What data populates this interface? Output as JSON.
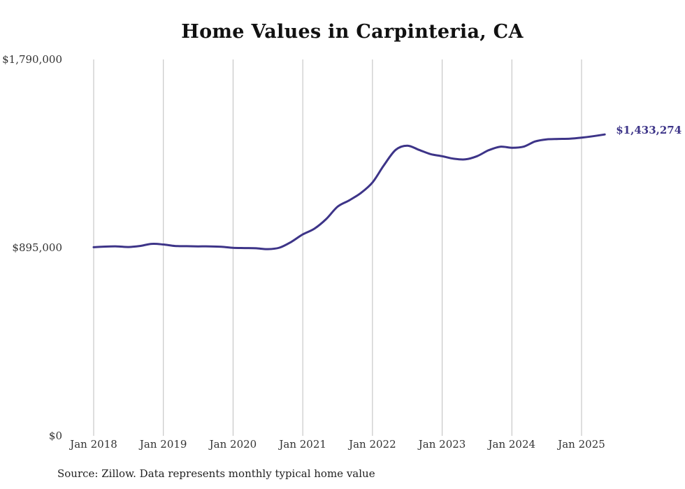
{
  "chart_data": {
    "type": "line",
    "title": "Home Values in Carpinteria, CA",
    "xlabel": "",
    "ylabel": "",
    "ylim": [
      0,
      1790000
    ],
    "y_ticks": [
      {
        "value": 0,
        "label": "$0"
      },
      {
        "value": 895000,
        "label": "$895,000"
      },
      {
        "value": 1790000,
        "label": "$1,790,000"
      }
    ],
    "x_ticks": [
      {
        "value": "2018-01",
        "label": "Jan 2018"
      },
      {
        "value": "2019-01",
        "label": "Jan 2019"
      },
      {
        "value": "2020-01",
        "label": "Jan 2020"
      },
      {
        "value": "2021-01",
        "label": "Jan 2021"
      },
      {
        "value": "2022-01",
        "label": "Jan 2022"
      },
      {
        "value": "2023-01",
        "label": "Jan 2023"
      },
      {
        "value": "2024-01",
        "label": "Jan 2024"
      },
      {
        "value": "2025-01",
        "label": "Jan 2025"
      }
    ],
    "grid": {
      "vertical": true,
      "horizontal": false
    },
    "line_color": "#3d3488",
    "end_label": "$1,433,274",
    "series": [
      {
        "x": [
          "2018-01",
          "2018-03",
          "2018-05",
          "2018-07",
          "2018-09",
          "2018-11",
          "2019-01",
          "2019-03",
          "2019-05",
          "2019-07",
          "2019-09",
          "2019-11",
          "2020-01",
          "2020-03",
          "2020-05",
          "2020-07",
          "2020-09",
          "2020-11",
          "2021-01",
          "2021-03",
          "2021-05",
          "2021-07",
          "2021-09",
          "2021-11",
          "2022-01",
          "2022-03",
          "2022-05",
          "2022-07",
          "2022-09",
          "2022-11",
          "2023-01",
          "2023-03",
          "2023-05",
          "2023-07",
          "2023-09",
          "2023-11",
          "2024-01",
          "2024-03",
          "2024-05",
          "2024-07",
          "2024-09",
          "2024-11",
          "2025-01",
          "2025-03",
          "2025-05"
        ],
        "values": [
          897000,
          900000,
          901000,
          898000,
          903000,
          913000,
          910000,
          903000,
          902000,
          901000,
          901000,
          899000,
          894000,
          893000,
          892000,
          888000,
          895000,
          922000,
          958000,
          985000,
          1030000,
          1090000,
          1120000,
          1155000,
          1205000,
          1288000,
          1360000,
          1380000,
          1360000,
          1340000,
          1330000,
          1318000,
          1315000,
          1330000,
          1358000,
          1375000,
          1370000,
          1375000,
          1400000,
          1410000,
          1412000,
          1413000,
          1418000,
          1425000,
          1433274
        ]
      }
    ]
  },
  "source_note": "Source: Zillow. Data represents monthly typical home value"
}
